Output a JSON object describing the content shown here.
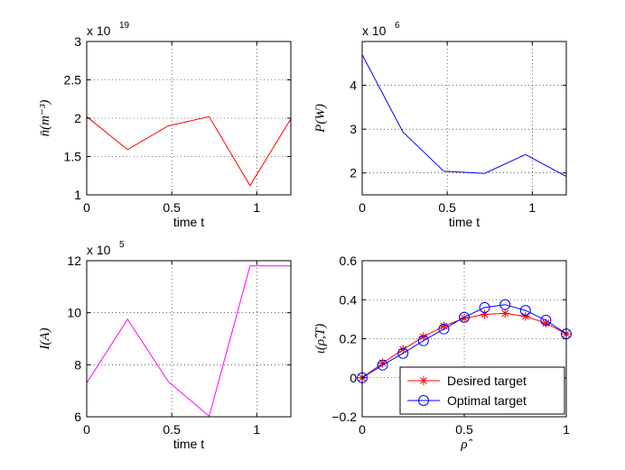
{
  "chart_data": [
    {
      "type": "line",
      "xlabel": "time t",
      "ylabel": "n̄(m⁻³)",
      "multiplier": "x 10",
      "exponent": "19",
      "xlim": [
        0,
        1.2
      ],
      "ylim": [
        1,
        3
      ],
      "xticks": [
        0,
        0.5,
        1
      ],
      "yticks": [
        1,
        1.5,
        2,
        2.5,
        3
      ],
      "xtick_labels": [
        "0",
        "0.5",
        "1"
      ],
      "ytick_labels": [
        "1",
        "1.5",
        "2",
        "2.5",
        "3"
      ],
      "grid": true,
      "series": [
        {
          "color": "#ff0000",
          "marker": "none",
          "x": [
            0,
            0.24,
            0.48,
            0.72,
            0.96,
            1.2
          ],
          "y": [
            2.02,
            1.59,
            1.9,
            2.02,
            1.12,
            1.99
          ]
        }
      ]
    },
    {
      "type": "line",
      "xlabel": "time t",
      "ylabel": "P(W)",
      "multiplier": "x 10",
      "exponent": "6",
      "xlim": [
        0,
        1.2
      ],
      "ylim": [
        1.5,
        5
      ],
      "xticks": [
        0,
        0.5,
        1
      ],
      "yticks": [
        2,
        3,
        4
      ],
      "xtick_labels": [
        "0",
        "0.5",
        "1"
      ],
      "ytick_labels": [
        "2",
        "3",
        "4"
      ],
      "grid": true,
      "series": [
        {
          "color": "#0000ff",
          "marker": "none",
          "x": [
            0,
            0.24,
            0.48,
            0.72,
            0.96,
            1.2
          ],
          "y": [
            4.7,
            2.93,
            2.04,
            1.99,
            2.42,
            1.92
          ]
        }
      ]
    },
    {
      "type": "line",
      "xlabel": "time t",
      "ylabel": "I(A)",
      "multiplier": "x 10",
      "exponent": "5",
      "xlim": [
        0,
        1.2
      ],
      "ylim": [
        6,
        12
      ],
      "xticks": [
        0,
        0.5,
        1
      ],
      "yticks": [
        6,
        8,
        10,
        12
      ],
      "xtick_labels": [
        "0",
        "0.5",
        "1"
      ],
      "ytick_labels": [
        "6",
        "8",
        "10",
        "12"
      ],
      "grid": true,
      "series": [
        {
          "color": "#ff00ff",
          "marker": "none",
          "x": [
            0,
            0.24,
            0.48,
            0.72,
            0.96,
            1.2
          ],
          "y": [
            7.3,
            9.75,
            7.35,
            6.02,
            11.8,
            11.8
          ]
        }
      ]
    },
    {
      "type": "line",
      "xlabel": "ρ̂",
      "ylabel": "ι(ρ̂,T)",
      "xlim": [
        0,
        1
      ],
      "ylim": [
        -0.2,
        0.6
      ],
      "xticks": [
        0,
        0.5,
        1
      ],
      "yticks": [
        -0.2,
        0,
        0.2,
        0.4,
        0.6
      ],
      "xtick_labels": [
        "0",
        "0.5",
        "1"
      ],
      "ytick_labels": [
        "−0.2",
        "0",
        "0.2",
        "0.4",
        "0.6"
      ],
      "grid": true,
      "legend": "bottom-right",
      "series": [
        {
          "name": "Desired target",
          "color": "#ff0000",
          "marker": "star",
          "x": [
            0,
            0.1,
            0.2,
            0.3,
            0.4,
            0.5,
            0.6,
            0.7,
            0.8,
            0.9,
            1.0
          ],
          "y": [
            0.0,
            0.075,
            0.145,
            0.21,
            0.265,
            0.305,
            0.325,
            0.33,
            0.315,
            0.28,
            0.225
          ]
        },
        {
          "name": "Optimal target",
          "color": "#0000ff",
          "marker": "circle",
          "x": [
            0,
            0.1,
            0.2,
            0.3,
            0.4,
            0.5,
            0.6,
            0.7,
            0.8,
            0.9,
            1.0
          ],
          "y": [
            0.0,
            0.065,
            0.125,
            0.19,
            0.25,
            0.31,
            0.36,
            0.375,
            0.345,
            0.295,
            0.225
          ]
        }
      ]
    }
  ]
}
